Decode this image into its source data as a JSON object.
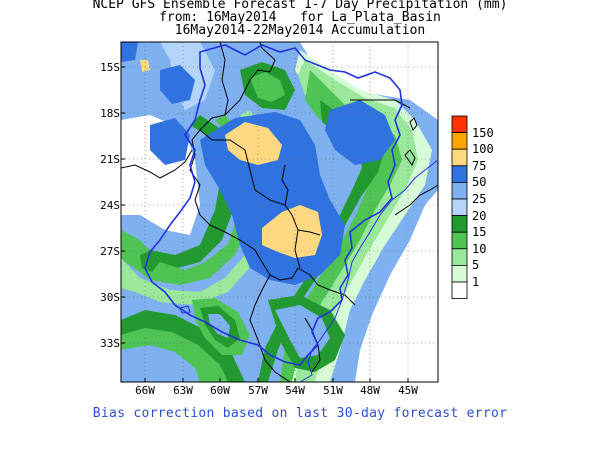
{
  "header": {
    "line1": "NCEP GFS Ensemble Forecast 1-7 Day Precipitation (mm)",
    "line2": "from: 16May2014   for La_Plata_Basin",
    "line3": "16May2014-22May2014 Accumulation"
  },
  "axes": {
    "lat_labels": [
      "15S",
      "18S",
      "21S",
      "24S",
      "27S",
      "30S",
      "33S"
    ],
    "lon_labels": [
      "66W",
      "63W",
      "60W",
      "57W",
      "54W",
      "51W",
      "48W",
      "45W"
    ]
  },
  "legend": {
    "labels": [
      "150",
      "100",
      "75",
      "50",
      "25",
      "20",
      "15",
      "10",
      "5",
      "1"
    ],
    "colors": [
      "#ff3300",
      "#ffa500",
      "#ffd982",
      "#2f72e0",
      "#7fb0f0",
      "#b4d4fa",
      "#239a30",
      "#4fc455",
      "#9ae89c",
      "#d6fbd6",
      "#ffffff"
    ]
  },
  "footer": "Bias correction based on last 30-day forecast error",
  "colors": {
    "outline": "#2233dd",
    "borders": "#000000"
  }
}
